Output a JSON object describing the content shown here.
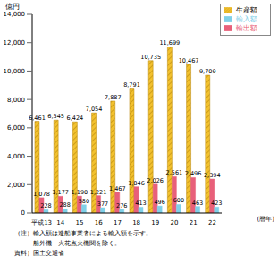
{
  "chart_data": {
    "type": "bar",
    "y_label": "億円",
    "x_label": "(暦年)",
    "categories": [
      "平成13",
      "14",
      "15",
      "16",
      "17",
      "18",
      "19",
      "20",
      "21",
      "22"
    ],
    "series": [
      {
        "name": "生産額",
        "color": "#f2c12e",
        "values": [
          6461,
          6545,
          6424,
          7054,
          7887,
          8791,
          10735,
          11699,
          10467,
          9709
        ],
        "value_labels": [
          "6,461",
          "6,545",
          "6,424",
          "7,054",
          "7,887",
          "8,791",
          "10,735",
          "11,699",
          "10,467",
          "9,709"
        ]
      },
      {
        "name": "輸出額",
        "color": "#e8607a",
        "values": [
          1078,
          1177,
          1190,
          1221,
          1467,
          1846,
          2026,
          2561,
          2496,
          2394
        ],
        "value_labels": [
          "1,078",
          "1,177",
          "1,190",
          "1,221",
          "1,467",
          "1,846",
          "2,026",
          "2,561",
          "2,496",
          "2,394"
        ]
      },
      {
        "name": "輸入額",
        "color": "#7fd0e8",
        "values": [
          228,
          288,
          580,
          377,
          276,
          413,
          496,
          600,
          463,
          423
        ]
      }
    ],
    "ylim": [
      0,
      14000
    ],
    "yticks": [
      0,
      {
        "value": 2000,
        "label": "2,000"
      },
      {
        "value": 4000,
        "label": "4,000"
      },
      {
        "value": 6000,
        "label": "6,000"
      },
      {
        "value": 8000,
        "label": "8,000"
      },
      {
        "value": 10000,
        "label": "10,000"
      },
      {
        "value": 12000,
        "label": "12,000"
      },
      {
        "value": 14000,
        "label": "14,000"
      }
    ],
    "grid": false,
    "legend": "top-right",
    "data_labels": true,
    "annotations": [
      "（注）輸入額は造船事業者による輸入額を示す。",
      "　　　船外機・火花点火機関を除く。",
      "資料）国土交通省"
    ]
  }
}
